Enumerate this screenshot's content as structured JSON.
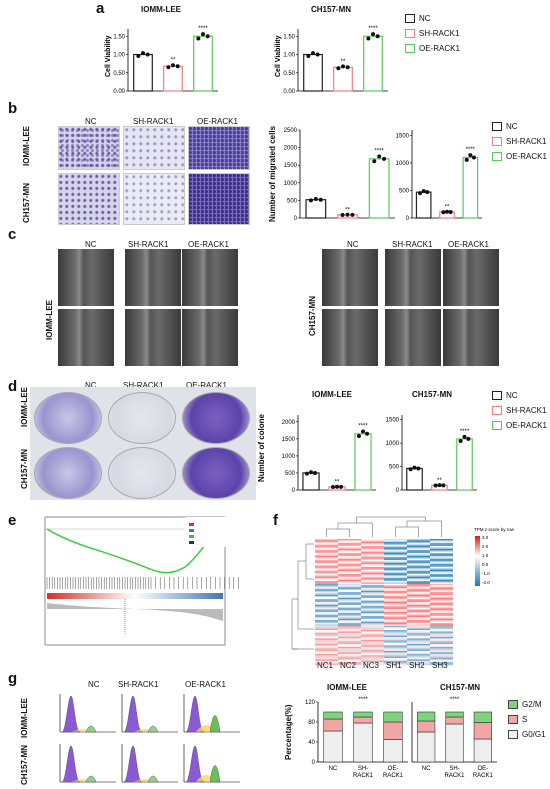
{
  "panels": {
    "a": "a",
    "b": "b",
    "c": "c",
    "d": "d",
    "e": "e",
    "f": "f",
    "g": "g"
  },
  "cell_lines": {
    "leftTitle": "IOMM-LEE",
    "rightTitle": "CH157-MN"
  },
  "groups": {
    "nc": "NC",
    "sh": "SH-RACK1",
    "oe": "OE-RACK1"
  },
  "legend": {
    "nc": "NC",
    "sh": "SH-RACK1",
    "oe": "OE-RACK1"
  },
  "colors": {
    "nc": "#222222",
    "sh": "#f08080",
    "oe": "#5cc85c",
    "heatHigh": "#d7191c",
    "heatLow": "#1f78b4"
  },
  "a": {
    "ylabel": "Cell Viability",
    "yticks": [
      "0.00",
      "0.50",
      "1.00",
      "1.50"
    ],
    "sig": {
      "sh": "**",
      "oe": "****"
    }
  },
  "b": {
    "ylabel": "Number of migrated cells",
    "yticksLeft": [
      "0",
      "500",
      "1000",
      "1500",
      "2000",
      "2500"
    ],
    "yticksRight": [
      "0",
      "500",
      "1000",
      "1500"
    ],
    "sig": {
      "sh": "**",
      "oe": "****"
    }
  },
  "c": {
    "cols": [
      "NC",
      "SH-RACK1",
      "OE-RACK1"
    ]
  },
  "d": {
    "ylabel": "Number of colone",
    "yticks": [
      "0",
      "500",
      "1000",
      "1500",
      "2000"
    ],
    "yticksRight": [
      "0",
      "500",
      "1000",
      "1500"
    ],
    "sig": {
      "sh": "**",
      "oe": "****"
    }
  },
  "f": {
    "columns": [
      "NC1",
      "NC2",
      "NC3",
      "SH1",
      "SH2",
      "SH3"
    ],
    "legend_title": "TPM z-score by row",
    "legend_ticks": [
      "3.0",
      "2.0",
      "1.0",
      "0.0",
      "-1.0",
      "-2.0"
    ]
  },
  "g": {
    "ylabel": "Percentage(%)",
    "yticks": [
      "0",
      "40",
      "80",
      "120"
    ],
    "xticks": [
      "NC",
      "SH-\nRACK1",
      "OE-\nRACK1"
    ],
    "legend": [
      "G2/M",
      "S",
      "G0/G1"
    ],
    "sig": "****"
  },
  "chart_data": [
    {
      "type": "bar",
      "title": "IOMM-LEE",
      "ylabel": "Cell Viability",
      "ylim": [
        0,
        1.7
      ],
      "categories": [
        "NC",
        "SH-RACK1",
        "OE-RACK1"
      ],
      "values": [
        1.0,
        0.68,
        1.5
      ]
    },
    {
      "type": "bar",
      "title": "CH157-MN",
      "ylabel": "Cell Viability",
      "ylim": [
        0,
        1.7
      ],
      "categories": [
        "NC",
        "SH-RACK1",
        "OE-RACK1"
      ],
      "values": [
        1.0,
        0.65,
        1.5
      ]
    },
    {
      "type": "bar",
      "ylabel": "Number of migrated cells",
      "ylim": [
        0,
        2500
      ],
      "categories": [
        "NC",
        "SH-RACK1",
        "OE-RACK1"
      ],
      "values": [
        520,
        90,
        1680
      ]
    },
    {
      "type": "bar",
      "ylim": [
        0,
        1600
      ],
      "categories": [
        "NC",
        "SH-RACK1",
        "OE-RACK1"
      ],
      "values": [
        470,
        110,
        1100
      ]
    },
    {
      "type": "bar",
      "title": "IOMM-LEE",
      "ylabel": "Number of colone",
      "ylim": [
        0,
        2200
      ],
      "categories": [
        "NC",
        "SH-RACK1",
        "OE-RACK1"
      ],
      "values": [
        500,
        90,
        1650
      ]
    },
    {
      "type": "bar",
      "title": "CH157-MN",
      "ylim": [
        0,
        1600
      ],
      "categories": [
        "NC",
        "SH-RACK1",
        "OE-RACK1"
      ],
      "values": [
        460,
        100,
        1090
      ]
    },
    {
      "type": "bar",
      "title": "IOMM-LEE",
      "ylabel": "Percentage(%)",
      "ylim": [
        0,
        120
      ],
      "categories": [
        "NC",
        "SH-RACK1",
        "OE-RACK1"
      ],
      "series": [
        {
          "name": "G0/G1",
          "values": [
            62,
            78,
            45
          ]
        },
        {
          "name": "S",
          "values": [
            24,
            12,
            35
          ]
        },
        {
          "name": "G2/M",
          "values": [
            14,
            10,
            20
          ]
        }
      ]
    },
    {
      "type": "bar",
      "title": "CH157-MN",
      "ylim": [
        0,
        120
      ],
      "categories": [
        "NC",
        "SH-RACK1",
        "OE-RACK1"
      ],
      "series": [
        {
          "name": "G0/G1",
          "values": [
            60,
            76,
            46
          ]
        },
        {
          "name": "S",
          "values": [
            22,
            14,
            33
          ]
        },
        {
          "name": "G2/M",
          "values": [
            18,
            10,
            21
          ]
        }
      ]
    }
  ]
}
